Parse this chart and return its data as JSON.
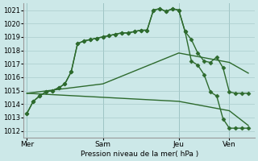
{
  "background_color": "#cce8e8",
  "grid_color": "#aacccc",
  "line_color": "#2d6a2d",
  "ylabel": "Pression niveau de la mer( hPa )",
  "ylim": [
    1011.5,
    1021.5
  ],
  "yticks": [
    1012,
    1013,
    1014,
    1015,
    1016,
    1017,
    1018,
    1019,
    1020,
    1021
  ],
  "xtick_labels": [
    "Mer",
    "Sam",
    "Jeu",
    "Ven"
  ],
  "xtick_positions": [
    0,
    24,
    48,
    64
  ],
  "total_points": 72,
  "series": [
    {
      "x": [
        0,
        2,
        4,
        6,
        8,
        10,
        12,
        14,
        16,
        18,
        20,
        22,
        24,
        26,
        28,
        30,
        32,
        34,
        36,
        38,
        40,
        42,
        44,
        46,
        48,
        50,
        52,
        54,
        56,
        58,
        60,
        62,
        64,
        66,
        68,
        70
      ],
      "y": [
        1013.3,
        1014.2,
        1014.6,
        1014.9,
        1015.0,
        1015.2,
        1015.5,
        1016.4,
        1018.5,
        1018.7,
        1018.8,
        1018.9,
        1019.0,
        1019.1,
        1019.2,
        1019.3,
        1019.3,
        1019.4,
        1019.5,
        1019.5,
        1021.0,
        1021.1,
        1020.9,
        1021.1,
        1021.0,
        1019.4,
        1018.8,
        1017.8,
        1017.2,
        1017.1,
        1017.5,
        1016.7,
        1014.9,
        1014.8,
        1014.8,
        1014.8
      ],
      "marker": true
    },
    {
      "x": [
        0,
        2,
        4,
        6,
        8,
        10,
        12,
        14,
        16,
        18,
        20,
        22,
        24,
        26,
        28,
        30,
        32,
        34,
        36,
        38,
        40,
        42,
        44,
        46,
        48,
        50,
        52,
        54,
        56,
        58,
        60,
        62,
        64,
        66,
        68,
        70
      ],
      "y": [
        1013.3,
        1014.2,
        1014.6,
        1014.9,
        1015.0,
        1015.2,
        1015.5,
        1016.4,
        1018.5,
        1018.7,
        1018.8,
        1018.9,
        1019.0,
        1019.1,
        1019.2,
        1019.3,
        1019.3,
        1019.4,
        1019.5,
        1019.5,
        1021.0,
        1021.1,
        1020.9,
        1021.1,
        1021.0,
        1019.4,
        1017.2,
        1016.9,
        1016.2,
        1014.9,
        1014.6,
        1012.9,
        1012.2,
        1012.2,
        1012.2,
        1012.2
      ],
      "marker": true
    },
    {
      "x": [
        0,
        24,
        48,
        64,
        70
      ],
      "y": [
        1014.8,
        1015.5,
        1017.8,
        1017.1,
        1016.3
      ],
      "marker": false
    },
    {
      "x": [
        0,
        24,
        48,
        64,
        70
      ],
      "y": [
        1014.8,
        1014.5,
        1014.2,
        1013.5,
        1012.4
      ],
      "marker": false
    }
  ],
  "marker_style": "D",
  "marker_size": 2.5,
  "lw_marker": 1.0,
  "lw_plain": 1.0
}
